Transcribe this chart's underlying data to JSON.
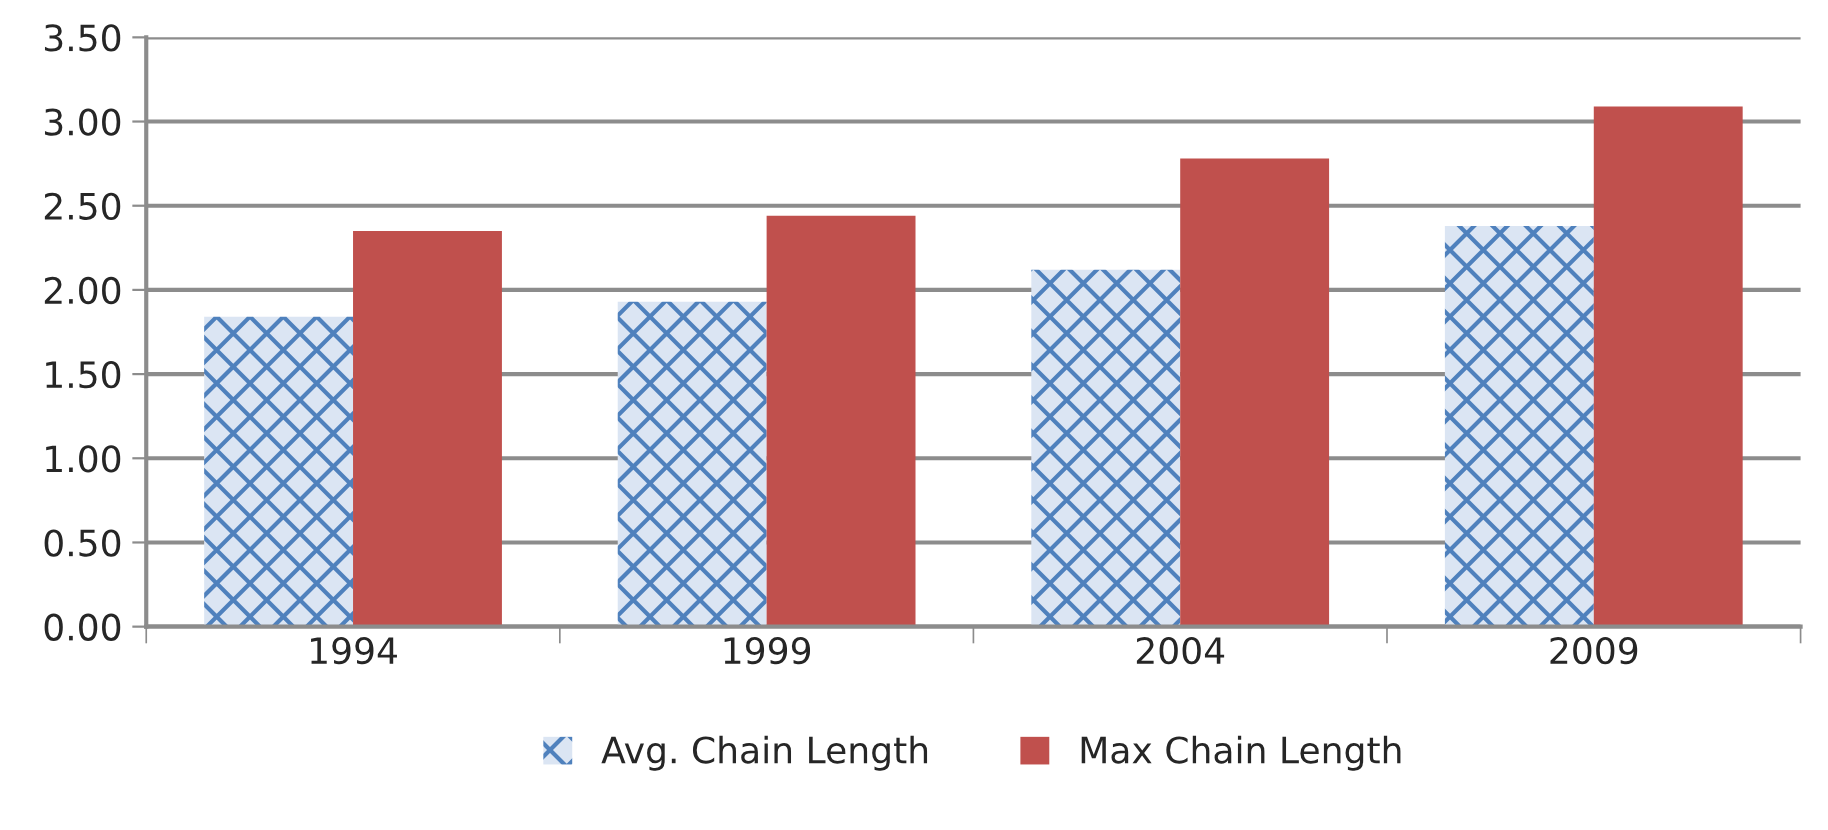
{
  "chart_data": {
    "type": "bar",
    "categories": [
      "1994",
      "1999",
      "2004",
      "2009"
    ],
    "series": [
      {
        "name": "Avg. Chain Length",
        "color": "#4f81bd",
        "values": [
          1.84,
          1.93,
          2.12,
          2.38
        ]
      },
      {
        "name": "Max Chain Length",
        "color": "#c0504d",
        "values": [
          2.35,
          2.44,
          2.78,
          3.09
        ]
      }
    ],
    "ylim": [
      0,
      3.5
    ],
    "yticks": [
      {
        "value": 0,
        "label": "0.00"
      },
      {
        "value": 0.5,
        "label": "0.50"
      },
      {
        "value": 1,
        "label": "1.00"
      },
      {
        "value": 1.5,
        "label": "1.50"
      },
      {
        "value": 2,
        "label": "2.00"
      },
      {
        "value": 2.5,
        "label": "2.50"
      },
      {
        "value": 3,
        "label": "3.00"
      },
      {
        "value": 3.5,
        "label": "3.50"
      }
    ],
    "grid": "y",
    "legend": "bottom"
  }
}
